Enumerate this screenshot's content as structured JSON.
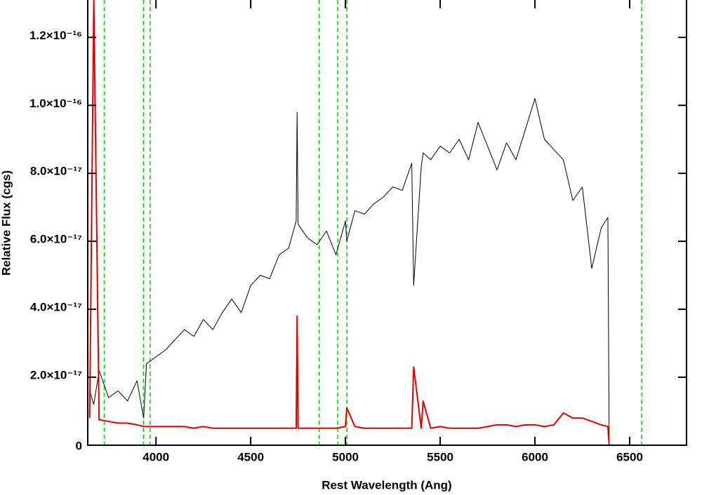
{
  "chart_data": {
    "type": "line",
    "x_label": "Rest Wavelength (Ang)",
    "y_label": "Relative Flux (cgs)",
    "xlim": [
      3640,
      6800
    ],
    "ylim": [
      0,
      1.31e-16
    ],
    "xticks": [
      4000,
      4500,
      5000,
      5500,
      6000,
      6500
    ],
    "yticks": [
      0,
      {
        "value": 2e-17,
        "label": "2.0×10⁻¹⁷"
      },
      {
        "value": 4e-17,
        "label": "4.0×10⁻¹⁷"
      },
      {
        "value": 6e-17,
        "label": "6.0×10⁻¹⁷"
      },
      {
        "value": 8e-17,
        "label": "8.0×10⁻¹⁷"
      },
      {
        "value": 1e-16,
        "label": "1.0×10⁻¹⁶"
      },
      {
        "value": 1.2e-16,
        "label": "1.2×10⁻¹⁶"
      }
    ],
    "vlines": [
      3727,
      3934,
      3969,
      4861,
      4959,
      5007,
      6563
    ],
    "vline_color": "#00dd00",
    "x": [
      3650,
      3672,
      3700,
      3750,
      3800,
      3850,
      3900,
      3935,
      3950,
      4000,
      4050,
      4100,
      4150,
      4200,
      4250,
      4300,
      4350,
      4400,
      4450,
      4500,
      4550,
      4600,
      4650,
      4700,
      4740,
      4745,
      4750,
      4800,
      4850,
      4900,
      4950,
      5000,
      5007,
      5050,
      5100,
      5150,
      5200,
      5250,
      5300,
      5350,
      5360,
      5400,
      5410,
      5450,
      5500,
      5550,
      5600,
      5650,
      5700,
      5750,
      5800,
      5850,
      5900,
      5950,
      6000,
      6050,
      6100,
      6150,
      6200,
      6250,
      6300,
      6350,
      6385,
      6392,
      6800
    ],
    "series": [
      {
        "color": "#000000",
        "width": 1,
        "values": [
          1.6e-17,
          1.2e-17,
          2.2e-17,
          1.4e-17,
          1.6e-17,
          1.3e-17,
          1.9e-17,
          8e-18,
          2.4e-17,
          2.6e-17,
          2.8e-17,
          3.1e-17,
          3.4e-17,
          3.2e-17,
          3.7e-17,
          3.4e-17,
          3.9e-17,
          4.3e-17,
          3.9e-17,
          4.7e-17,
          5e-17,
          4.9e-17,
          5.6e-17,
          5.8e-17,
          6.6e-17,
          9.8e-17,
          6.5e-17,
          6.1e-17,
          5.9e-17,
          6.3e-17,
          5.6e-17,
          6.6e-17,
          6e-17,
          6.9e-17,
          6.8e-17,
          7.1e-17,
          7.3e-17,
          7.6e-17,
          7.5e-17,
          8.3e-17,
          4.7e-17,
          8.2e-17,
          8.6e-17,
          8.4e-17,
          8.8e-17,
          8.6e-17,
          9e-17,
          8.4e-17,
          9.5e-17,
          8.8e-17,
          8.1e-17,
          8.9e-17,
          8.4e-17,
          9.3e-17,
          1.02e-16,
          9e-17,
          8.7e-17,
          8.4e-17,
          7.2e-17,
          7.6e-17,
          5.2e-17,
          6.4e-17,
          6.7e-17,
          0,
          0
        ]
      },
      {
        "color": "#e00000",
        "width": 2,
        "values": [
          8e-18,
          1.31e-16,
          7.5e-18,
          7e-18,
          6.5e-18,
          6.5e-18,
          6e-18,
          5.5e-18,
          5.5e-18,
          5.5e-18,
          5.5e-18,
          5.5e-18,
          5.5e-18,
          5e-18,
          5.5e-18,
          5e-18,
          5e-18,
          5e-18,
          5e-18,
          5e-18,
          5e-18,
          5e-18,
          5e-18,
          5e-18,
          5e-18,
          3.8e-17,
          5e-18,
          5e-18,
          5e-18,
          5e-18,
          5e-18,
          5.5e-18,
          1.1e-17,
          5.5e-18,
          5e-18,
          5e-18,
          5e-18,
          5e-18,
          5e-18,
          5e-18,
          2.3e-17,
          5e-18,
          1.3e-17,
          5e-18,
          5.5e-18,
          5e-18,
          5e-18,
          5e-18,
          5e-18,
          5.5e-18,
          6e-18,
          6e-18,
          5.5e-18,
          6e-18,
          6e-18,
          5.5e-18,
          6e-18,
          9.5e-18,
          8e-18,
          8e-18,
          7e-18,
          6e-18,
          5.5e-18,
          0,
          0
        ]
      }
    ]
  }
}
